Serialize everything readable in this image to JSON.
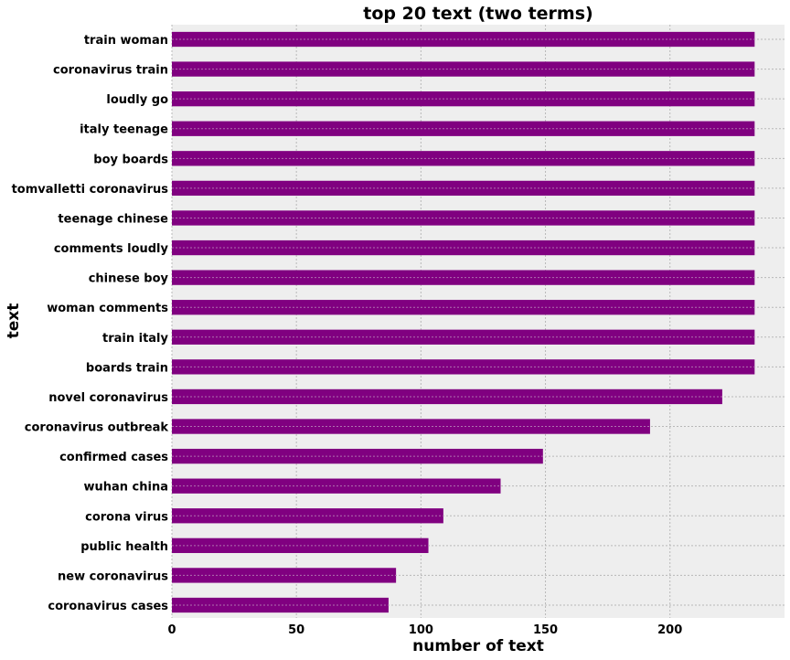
{
  "chart_data": {
    "type": "bar",
    "orientation": "horizontal",
    "title": "top 20 text (two terms)",
    "xlabel": "number of text",
    "ylabel": "text",
    "xlim": [
      0,
      246
    ],
    "xticks": [
      0,
      50,
      100,
      150,
      200
    ],
    "grid": true,
    "bar_color": "#800080",
    "categories": [
      "train woman",
      "coronavirus train",
      "loudly go",
      "italy teenage",
      "boy boards",
      "tomvalletti coronavirus",
      "teenage chinese",
      "comments loudly",
      "chinese boy",
      "woman comments",
      "train italy",
      "boards train",
      "novel coronavirus",
      "coronavirus outbreak",
      "confirmed cases",
      "wuhan china",
      "corona virus",
      "public health",
      "new coronavirus",
      "coronavirus cases"
    ],
    "values": [
      234,
      234,
      234,
      234,
      234,
      234,
      234,
      234,
      234,
      234,
      234,
      234,
      221,
      192,
      149,
      132,
      109,
      103,
      90,
      87
    ]
  }
}
